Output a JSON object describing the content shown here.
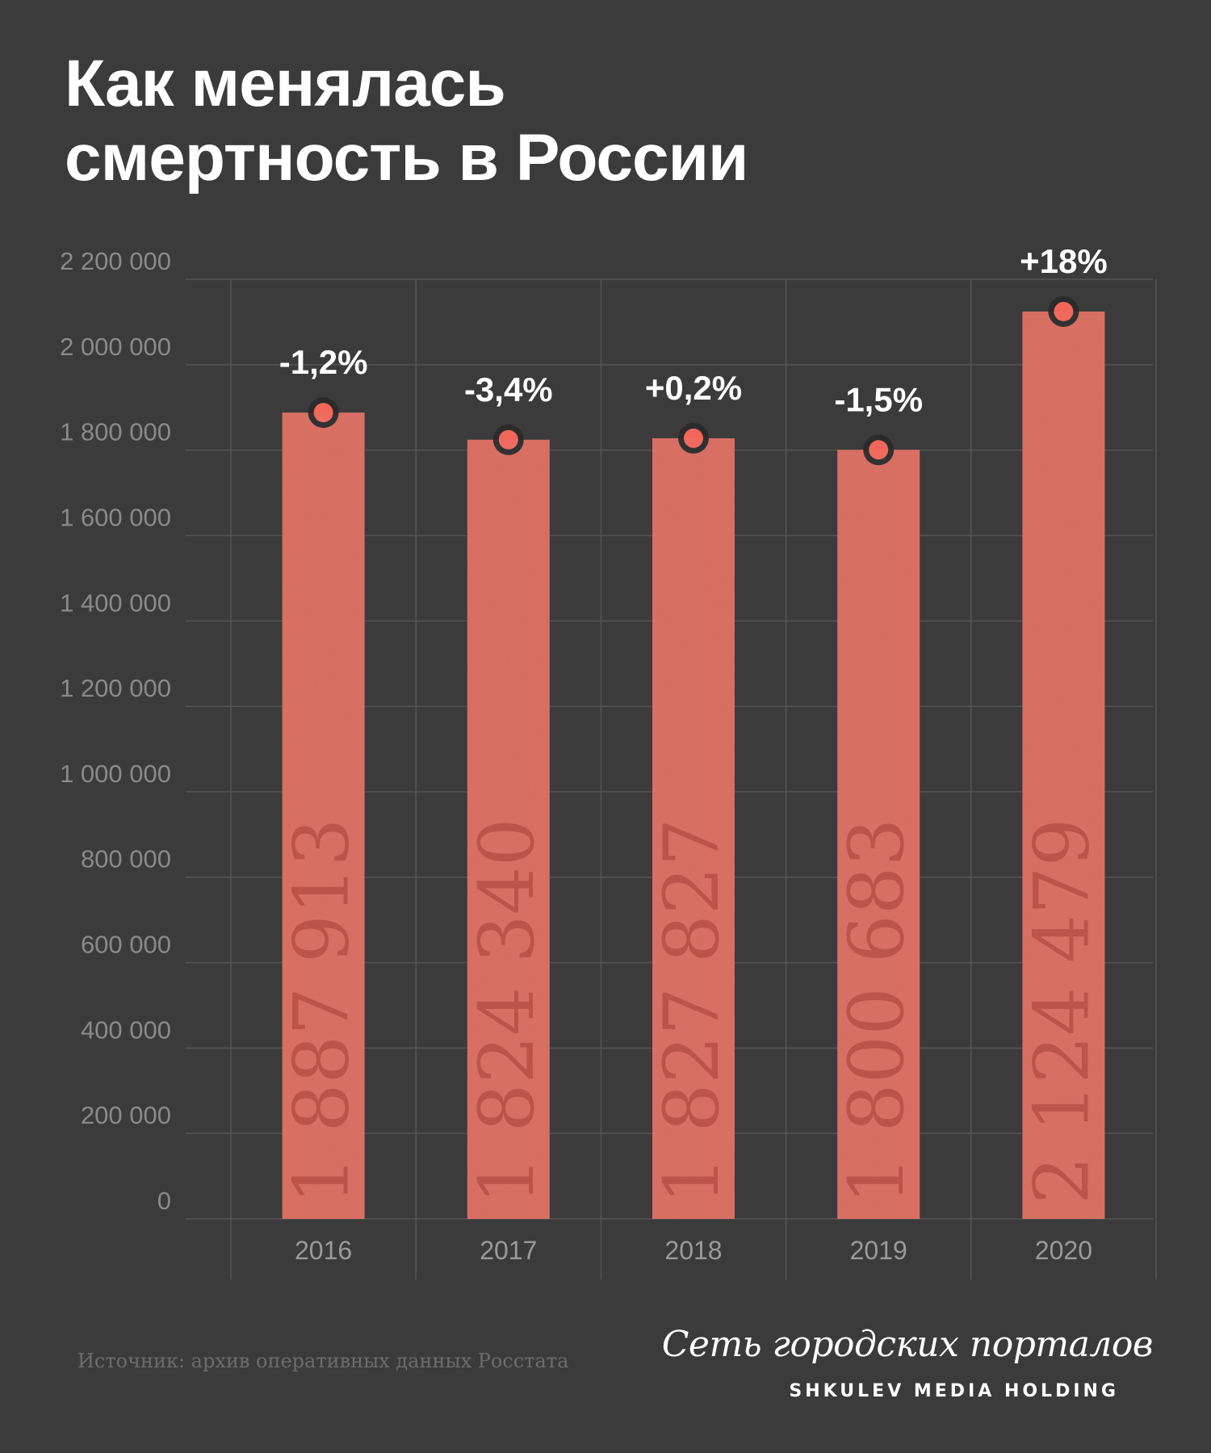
{
  "title_lines": [
    "Как менялась",
    "смертность в России"
  ],
  "chart_data": {
    "type": "bar",
    "title": "Как менялась смертность в России",
    "xlabel": "",
    "ylabel": "",
    "ylim": [
      0,
      2200000
    ],
    "yticks": [
      "0",
      "200 000",
      "400 000",
      "600 000",
      "800 000",
      "1 000 000",
      "1 200 000",
      "1 400 000",
      "1 600 000",
      "1 800 000",
      "2 000 000",
      "2 200 000"
    ],
    "categories": [
      "2016",
      "2017",
      "2018",
      "2019",
      "2020"
    ],
    "values": [
      1887913,
      1824340,
      1827827,
      1800683,
      2124479
    ],
    "value_labels": [
      "1 887 913",
      "1 824 340",
      "1 827 827",
      "1 800 683",
      "2 124 479"
    ],
    "change_labels": [
      "-1,2%",
      "-3,4%",
      "+0,2%",
      "-1,5%",
      "+18%"
    ],
    "grid": true
  },
  "source": "Источник: архив оперативных данных Росстата",
  "brand": {
    "script": "Сеть городских порталов",
    "holding": "SHKULEV MEDIA HOLDING"
  },
  "colors": {
    "background": "#3b3b3b",
    "bar": "#d96b5f",
    "grid": "#555555",
    "tick_text": "#8a8a8a",
    "year_text": "#9a9a9a",
    "dot": "#f2675a",
    "dot_ring": "#2b2b2b",
    "label_text": "#ffffff",
    "bar_value_text": "#b54a40"
  }
}
